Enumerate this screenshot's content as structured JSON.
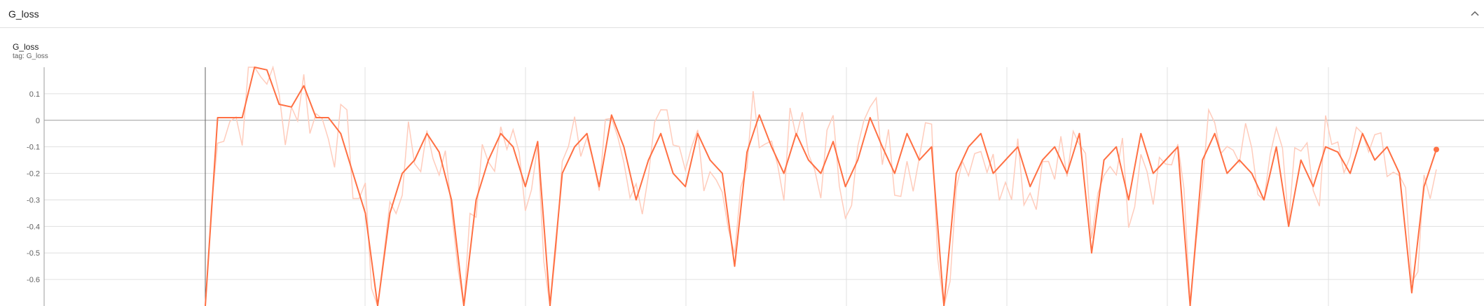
{
  "card": {
    "title": "G_loss",
    "collapse_icon": "chevron-up-icon"
  },
  "chart": {
    "title": "G_loss",
    "tag_prefix": "tag:",
    "tag_value": "G_loss"
  },
  "colors": {
    "smoothed": "#ff7043",
    "raw": "#ffccbc",
    "grid": "#e0e0e0",
    "axis": "#9e9e9e",
    "zero_line": "#9e9e9e"
  },
  "chart_data": {
    "type": "line",
    "title": "G_loss",
    "xlabel": "",
    "ylabel": "",
    "ylim": [
      -0.7,
      0.2
    ],
    "yticks": [
      0.1,
      0,
      -0.1,
      -0.2,
      -0.3,
      -0.4,
      -0.5,
      -0.6
    ],
    "ytick_labels": [
      "0.1",
      "0",
      "-0.1",
      "-0.2",
      "-0.3",
      "-0.4",
      "-0.5",
      "-0.6"
    ],
    "x_units": "step index (axis unlabeled)",
    "xlim": [
      0,
      100
    ],
    "grid": true,
    "legend": "none",
    "series": [
      {
        "x": [
          0,
          1,
          2,
          3,
          4,
          5,
          6,
          7,
          8,
          9,
          10,
          11,
          12,
          13,
          14,
          15,
          16,
          17,
          18,
          19,
          20,
          21,
          22,
          23,
          24,
          25,
          26,
          27,
          28,
          29,
          30,
          31,
          32,
          33,
          34,
          35,
          36,
          37,
          38,
          39,
          40,
          41,
          42,
          43,
          44,
          45,
          46,
          47,
          48,
          49,
          50,
          51,
          52,
          53,
          54,
          55,
          56,
          57,
          58,
          59,
          60,
          61,
          62,
          63,
          64,
          65,
          66,
          67,
          68,
          69,
          70,
          71,
          72,
          73,
          74,
          75,
          76,
          77,
          78,
          79,
          80,
          81,
          82,
          83,
          84,
          85,
          86,
          87,
          88,
          89,
          90,
          91,
          92,
          93,
          94,
          95,
          96,
          97,
          98,
          99,
          100
        ],
        "y": [
          -0.7,
          0.01,
          0.01,
          0.01,
          0.2,
          0.19,
          0.06,
          0.05,
          0.13,
          0.01,
          0.01,
          -0.05,
          -0.2,
          -0.35,
          -0.7,
          -0.35,
          -0.2,
          -0.15,
          -0.05,
          -0.12,
          -0.3,
          -0.7,
          -0.3,
          -0.15,
          -0.05,
          -0.1,
          -0.25,
          -0.08,
          -0.7,
          -0.2,
          -0.1,
          -0.05,
          -0.25,
          0.02,
          -0.1,
          -0.3,
          -0.15,
          -0.05,
          -0.2,
          -0.25,
          -0.05,
          -0.15,
          -0.2,
          -0.55,
          -0.12,
          0.02,
          -0.1,
          -0.2,
          -0.05,
          -0.15,
          -0.2,
          -0.08,
          -0.25,
          -0.15,
          0.01,
          -0.1,
          -0.2,
          -0.05,
          -0.15,
          -0.1,
          -0.7,
          -0.2,
          -0.1,
          -0.05,
          -0.2,
          -0.15,
          -0.1,
          -0.25,
          -0.15,
          -0.1,
          -0.2,
          -0.05,
          -0.5,
          -0.15,
          -0.1,
          -0.3,
          -0.05,
          -0.2,
          -0.15,
          -0.1,
          -0.7,
          -0.15,
          -0.05,
          -0.2,
          -0.15,
          -0.2,
          -0.3,
          -0.1,
          -0.4,
          -0.15,
          -0.25,
          -0.1,
          -0.12,
          -0.2,
          -0.05,
          -0.15,
          -0.1,
          -0.2,
          -0.65,
          -0.25,
          -0.11
        ]
      }
    ]
  }
}
